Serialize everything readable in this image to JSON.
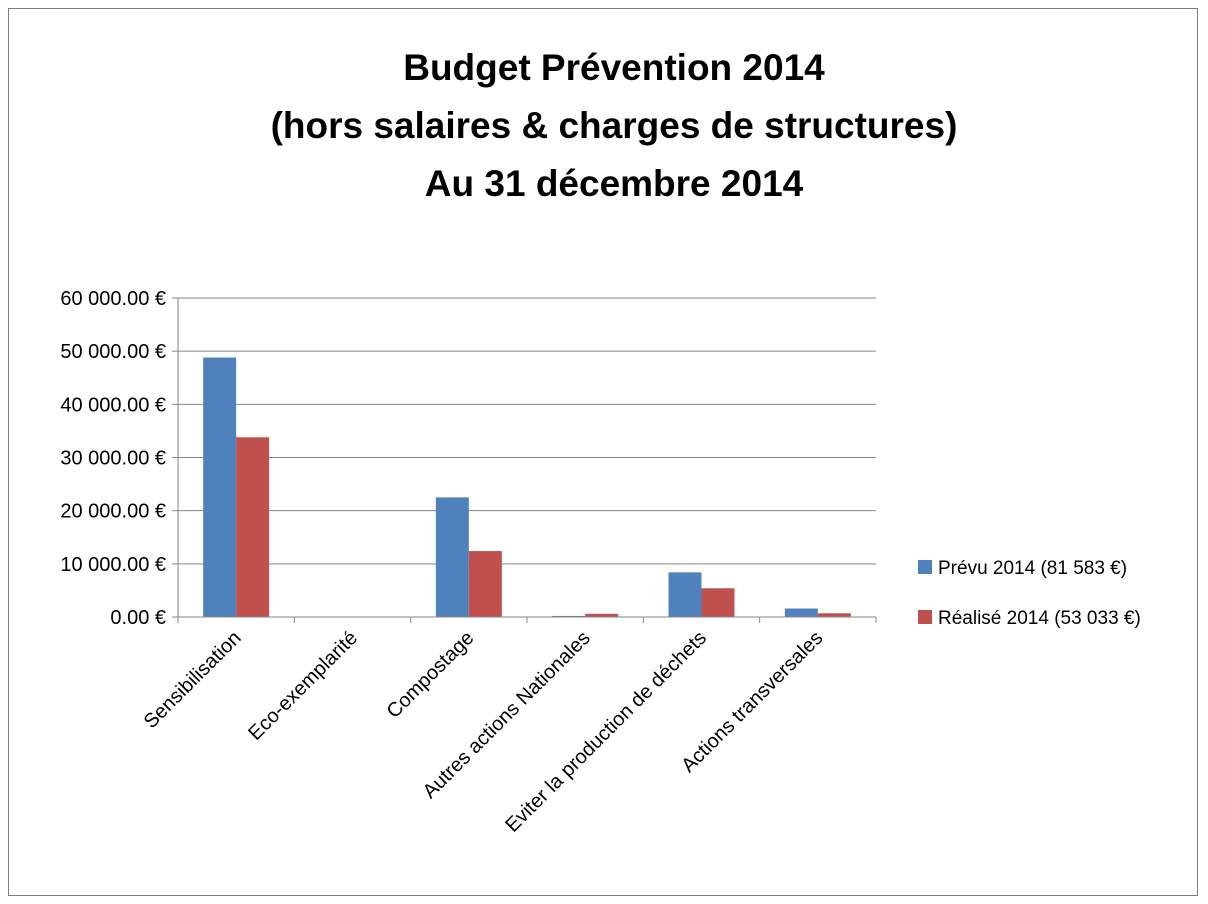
{
  "chart_data": {
    "type": "bar",
    "title": [
      "Budget Prévention 2014",
      "(hors salaires & charges de structures)",
      "Au 31 décembre 2014"
    ],
    "xlabel": "",
    "ylabel": "",
    "categories": [
      "Sensibilisation",
      "Eco-exemplarité",
      "Compostage",
      "Autres actions Nationales",
      "Eviter la production de déchets",
      "Actions transversales"
    ],
    "series": [
      {
        "name": "Prévu 2014 (81 583 €)",
        "color": "#4f81bd",
        "values": [
          48800,
          0,
          22500,
          200,
          8400,
          1600
        ]
      },
      {
        "name": "Réalisé 2014 (53 033 €)",
        "color": "#c0504d",
        "values": [
          33800,
          0,
          12400,
          600,
          5400,
          700
        ]
      }
    ],
    "ylim": [
      0,
      60000
    ],
    "yticks": [
      0,
      10000,
      20000,
      30000,
      40000,
      50000,
      60000
    ],
    "ytick_labels": [
      "0.00 €",
      "10 000.00 €",
      "20 000.00 €",
      "30 000.00 €",
      "40 000.00 €",
      "50 000.00 €",
      "60 000.00 €"
    ],
    "grid": true,
    "legend_position": "right"
  }
}
